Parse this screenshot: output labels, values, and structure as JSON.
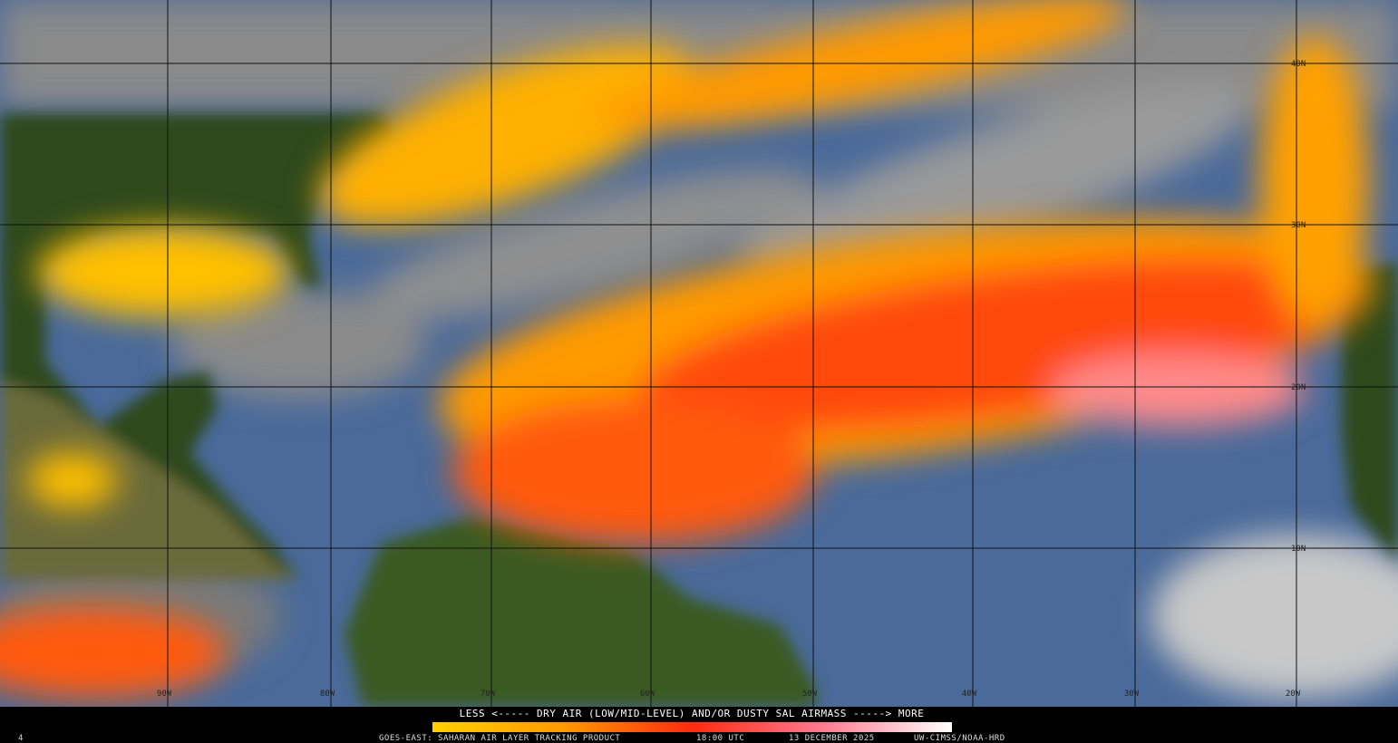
{
  "map": {
    "latitude_labels": [
      "40N",
      "30N",
      "20N",
      "10N"
    ],
    "longitude_labels": [
      "90W",
      "80W",
      "70W",
      "60W",
      "50W",
      "40W",
      "30W",
      "20W"
    ]
  },
  "legend": {
    "caption": "LESS <----- DRY AIR (LOW/MID-LEVEL) AND/OR DUSTY SAL AIRMASS -----> MORE"
  },
  "footer": {
    "frame": "4",
    "product": "GOES-EAST: SAHARAN AIR LAYER TRACKING PRODUCT",
    "time": "18:00 UTC",
    "date": "13 DECEMBER 2025",
    "credit": "UW-CIMSS/NOAA-HRD"
  }
}
